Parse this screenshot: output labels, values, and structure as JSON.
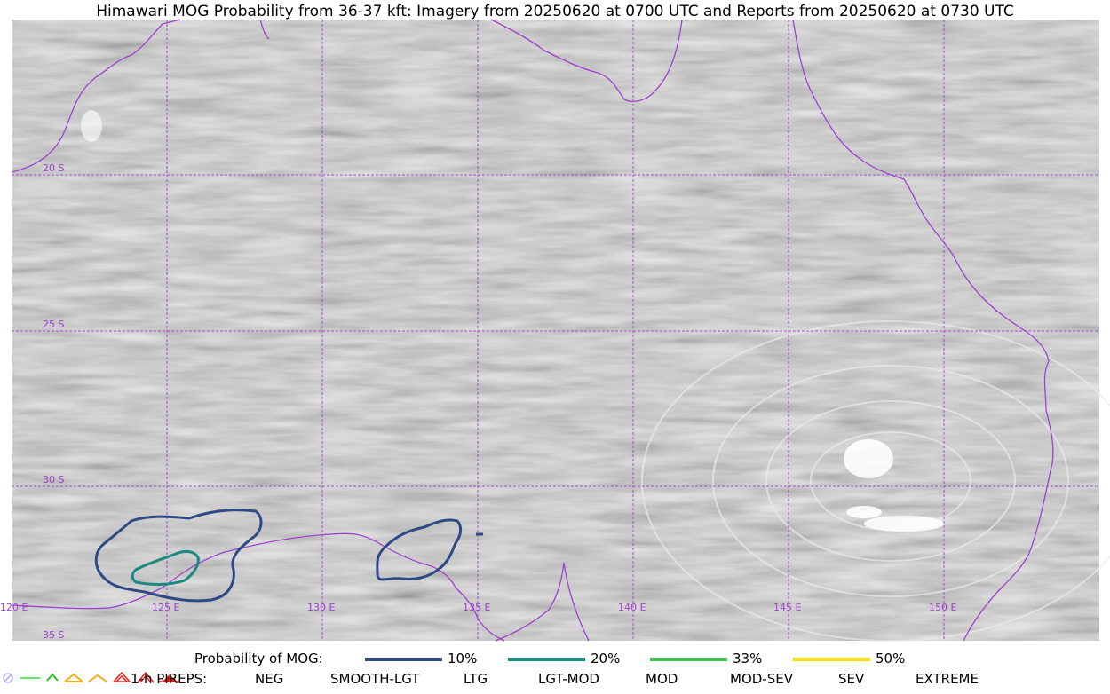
{
  "title": "Himawari MOG Probability from 36-37 kft: Imagery from 20250620 at 0700 UTC and Reports from 20250620 at 0730 UTC",
  "map": {
    "latitude_labels": [
      "20 S",
      "25 S",
      "30 S",
      "35 S"
    ],
    "longitude_labels": [
      "120 E",
      "125 E",
      "130 E",
      "135 E",
      "140 E",
      "145 E",
      "150 E"
    ],
    "colors": {
      "coastline": "#a040d0",
      "gridline": "#a040d0",
      "contour_10": "#2e4a85",
      "contour_20": "#1a8a80",
      "contour_33": "#44c050",
      "contour_50": "#f5e000"
    }
  },
  "legend": {
    "probability": {
      "label": "Probability of MOG:",
      "items": [
        {
          "label": "10%",
          "color": "#2e4a85"
        },
        {
          "label": "20%",
          "color": "#1a8a80"
        },
        {
          "label": "33%",
          "color": "#44c050"
        },
        {
          "label": "50%",
          "color": "#f5e000"
        }
      ]
    },
    "pireps": {
      "label": "1-h PIREPS:",
      "items": [
        {
          "label": "NEG",
          "icon": "neg-icon",
          "color": "#b0b0f0"
        },
        {
          "label": "SMOOTH-LGT",
          "icon": "smooth-lgt-icon",
          "color": "#33dd33"
        },
        {
          "label": "LTG",
          "icon": "ltg-icon",
          "color": "#22cc22"
        },
        {
          "label": "LGT-MOD",
          "icon": "lgt-mod-icon",
          "color": "#f0b020"
        },
        {
          "label": "MOD",
          "icon": "mod-icon",
          "color": "#f0b020"
        },
        {
          "label": "MOD-SEV",
          "icon": "mod-sev-icon",
          "color": "#e83030"
        },
        {
          "label": "SEV",
          "icon": "sev-icon",
          "color": "#e83030"
        },
        {
          "label": "EXTREME",
          "icon": "extreme-icon",
          "color": "#e81010"
        }
      ]
    }
  }
}
